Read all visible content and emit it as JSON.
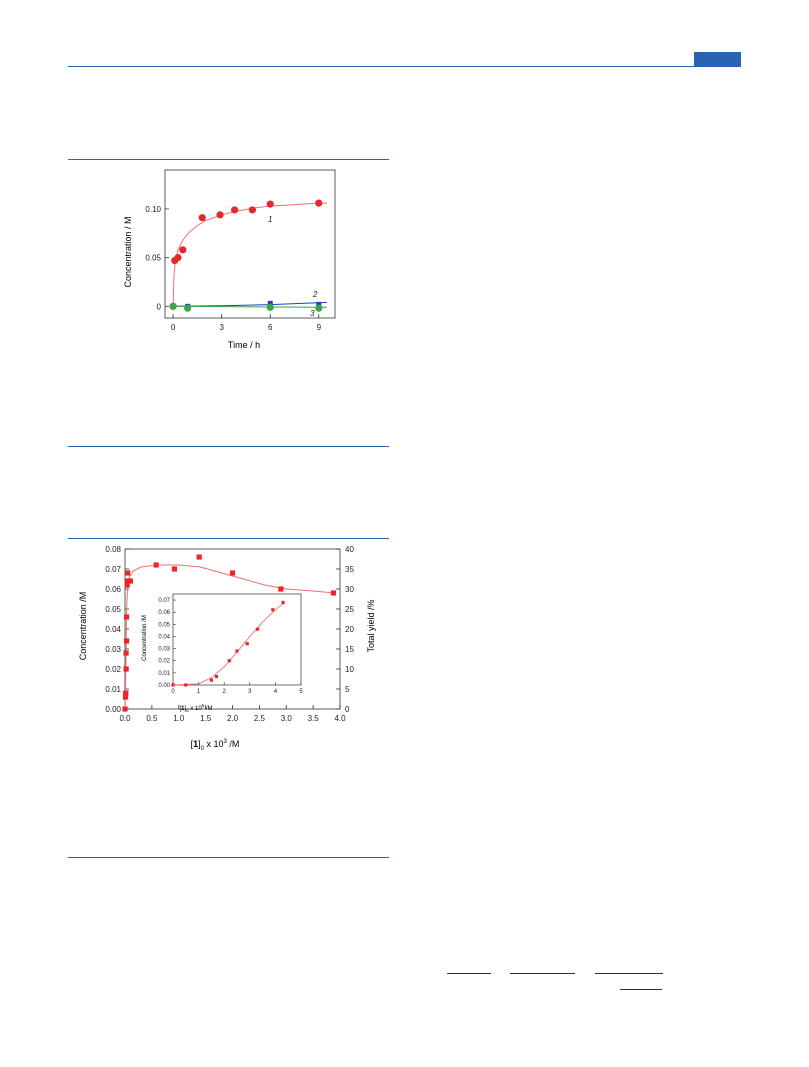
{
  "colors": {
    "accent": "#2a63b3",
    "series_red": "#e8262b",
    "series_blue": "#1f3fbf",
    "series_green": "#3aa64a",
    "fit_red": "#f07070"
  },
  "chart_data": [
    {
      "type": "scatter",
      "xlabel": "Time / h",
      "ylabel": "Concentration  / M",
      "xlim": [
        -0.5,
        10
      ],
      "ylim": [
        -0.012,
        0.14
      ],
      "xticks": [
        0,
        3,
        6,
        9
      ],
      "yticks": [
        0,
        0.05,
        0.1
      ],
      "ytick_labels": [
        "0",
        "0.05",
        "0.10"
      ],
      "grid": false,
      "series": [
        {
          "name": "1",
          "color": "#e8262b",
          "marker": "circle",
          "x": [
            0,
            0.1,
            0.3,
            0.6,
            1.8,
            2.9,
            3.8,
            4.9,
            6.0,
            9.0
          ],
          "y": [
            0.0,
            0.047,
            0.05,
            0.058,
            0.091,
            0.094,
            0.099,
            0.099,
            0.105,
            0.106
          ],
          "fit": {
            "x": [
              0,
              0.05,
              0.15,
              0.3,
              0.6,
              1.0,
              1.5,
              2.0,
              3.0,
              4.0,
              5.0,
              6.0,
              7.0,
              8.0,
              9.0,
              9.5
            ],
            "y": [
              0.0,
              0.03,
              0.048,
              0.058,
              0.068,
              0.076,
              0.083,
              0.088,
              0.094,
              0.098,
              0.101,
              0.103,
              0.104,
              0.105,
              0.106,
              0.106
            ]
          }
        },
        {
          "name": "2",
          "color": "#1f3fbf",
          "marker": "square",
          "x": [
            0,
            0.9,
            6.0,
            9.0
          ],
          "y": [
            0.0,
            0.0,
            0.003,
            0.002
          ],
          "fit": {
            "x": [
              0,
              3,
              6,
              9.5
            ],
            "y": [
              0.0,
              0.0005,
              0.0018,
              0.004
            ]
          }
        },
        {
          "name": "3",
          "color": "#3aa64a",
          "marker": "circle",
          "x": [
            0,
            0.9,
            6.0,
            9.0
          ],
          "y": [
            0.0,
            -0.002,
            -0.001,
            -0.002
          ],
          "fit": {
            "x": [
              0,
              9.5
            ],
            "y": [
              0.0,
              -0.001
            ]
          }
        }
      ]
    },
    {
      "type": "scatter",
      "xlabel_parts": [
        "[",
        "1",
        "]",
        "0",
        " x 10",
        "3",
        " /M"
      ],
      "ylabel": "Concentration /M",
      "y2label": "Total yield /%",
      "xlim": [
        0,
        4.0
      ],
      "ylim": [
        0,
        0.08
      ],
      "y2lim": [
        0,
        40
      ],
      "xticks": [
        "0.0",
        "0.5",
        "1.0",
        "1.5",
        "2.0",
        "2.5",
        "3.0",
        "3.5",
        "4.0"
      ],
      "yticks": [
        "0.00",
        "0.01",
        "0.02",
        "0.03",
        "0.04",
        "0.05",
        "0.06",
        "0.07",
        "0.08"
      ],
      "y2ticks": [
        "0",
        "5",
        "10",
        "15",
        "20",
        "25",
        "30",
        "35",
        "40"
      ],
      "grid": false,
      "series": [
        {
          "color": "#e8262b",
          "marker": "square",
          "x": [
            0.0,
            0.01,
            0.01,
            0.015,
            0.02,
            0.02,
            0.03,
            0.03,
            0.04,
            0.05,
            0.05,
            0.1,
            0.58,
            0.92,
            1.38,
            2.0,
            2.9,
            3.88
          ],
          "y": [
            0.0,
            0.006,
            0.007,
            0.008,
            0.02,
            0.028,
            0.034,
            0.046,
            0.062,
            0.064,
            0.068,
            0.064,
            0.072,
            0.07,
            0.076,
            0.068,
            0.06,
            0.058
          ],
          "fit": {
            "x": [
              0,
              0.01,
              0.02,
              0.03,
              0.05,
              0.08,
              0.15,
              0.3,
              0.6,
              1.0,
              1.4,
              1.8,
              2.2,
              2.6,
              3.0,
              3.5,
              3.9
            ],
            "y": [
              0,
              0.01,
              0.03,
              0.05,
              0.062,
              0.066,
              0.069,
              0.071,
              0.072,
              0.072,
              0.071,
              0.068,
              0.065,
              0.062,
              0.06,
              0.059,
              0.058
            ]
          }
        }
      ],
      "inset": {
        "xlabel_parts": [
          "[",
          "1",
          "]",
          "0",
          " x 10",
          "5",
          " /M"
        ],
        "ylabel": "Concentration /M",
        "xlim": [
          0,
          5
        ],
        "ylim": [
          0,
          0.075
        ],
        "xticks": [
          "0",
          "1",
          "2",
          "3",
          "4",
          "5"
        ],
        "yticks": [
          "0.00",
          "0.01",
          "0.02",
          "0.03",
          "0.04",
          "0.05",
          "0.06",
          "0.07"
        ],
        "series": [
          {
            "color": "#e8262b",
            "marker": "square",
            "x": [
              0.0,
              0.5,
              1.5,
              1.7,
              2.2,
              2.5,
              2.9,
              3.3,
              3.9,
              4.3
            ],
            "y": [
              0.0,
              0.0,
              0.004,
              0.007,
              0.02,
              0.028,
              0.034,
              0.046,
              0.062,
              0.068
            ],
            "fit": {
              "x": [
                0,
                1.0,
                1.5,
                2.0,
                2.5,
                3.0,
                3.5,
                4.0,
                4.3
              ],
              "y": [
                0.0,
                0.001,
                0.006,
                0.015,
                0.027,
                0.04,
                0.052,
                0.062,
                0.067
              ]
            }
          }
        ]
      }
    }
  ]
}
